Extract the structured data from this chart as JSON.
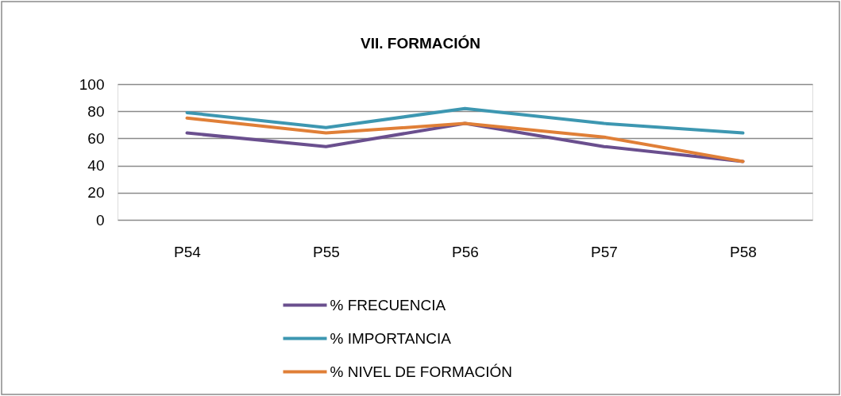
{
  "chart_data": {
    "type": "line",
    "title": "VII. FORMACIÓN",
    "categories": [
      "P54",
      "P55",
      "P56",
      "P57",
      "P58"
    ],
    "series": [
      {
        "name": "% FRECUENCIA",
        "color": "#6a4f8e",
        "values": [
          64,
          54,
          71,
          54,
          43
        ]
      },
      {
        "name": "% IMPORTANCIA",
        "color": "#3d97b1",
        "values": [
          79,
          68,
          82,
          71,
          64
        ]
      },
      {
        "name": "% NIVEL DE FORMACIÓN",
        "color": "#e07f37",
        "values": [
          75,
          64,
          71,
          61,
          43
        ]
      }
    ],
    "ylim": [
      0,
      100
    ],
    "yticks": [
      0,
      20,
      40,
      60,
      80,
      100
    ],
    "grid": "y",
    "legend": "bottom"
  }
}
